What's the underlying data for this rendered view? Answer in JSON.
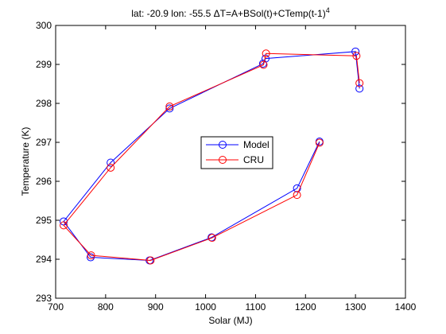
{
  "chart_data": {
    "type": "line",
    "title": "lat: -20.9 lon: -55.5  ΔT=A+BSol(t)+CTemp(t-1)",
    "title_superscript": "4",
    "xlabel": "Solar (MJ)",
    "ylabel": "Temperature (K)",
    "xlim": [
      700,
      1400
    ],
    "ylim": [
      293,
      300
    ],
    "xticks": [
      700,
      800,
      900,
      1000,
      1100,
      1200,
      1300,
      1400
    ],
    "yticks": [
      293,
      294,
      295,
      296,
      297,
      298,
      299,
      300
    ],
    "grid": false,
    "legend_position": "center",
    "series": [
      {
        "name": "Model",
        "color": "#0000ff",
        "marker": "circle",
        "x": [
          1228,
          1183,
          1012,
          888,
          770,
          716,
          810,
          928,
          1115,
          1120,
          1300,
          1308
        ],
        "y": [
          297.02,
          295.82,
          294.56,
          293.97,
          294.05,
          294.97,
          296.48,
          297.87,
          299.02,
          299.15,
          299.33,
          298.38
        ]
      },
      {
        "name": "CRU",
        "color": "#ff0000",
        "marker": "circle",
        "x": [
          1228,
          1183,
          1013,
          890,
          771,
          716,
          810,
          928,
          1116,
          1121,
          1302,
          1308
        ],
        "y": [
          296.99,
          295.65,
          294.55,
          293.97,
          294.1,
          294.87,
          296.35,
          297.92,
          298.99,
          299.28,
          299.22,
          298.52
        ]
      }
    ]
  }
}
